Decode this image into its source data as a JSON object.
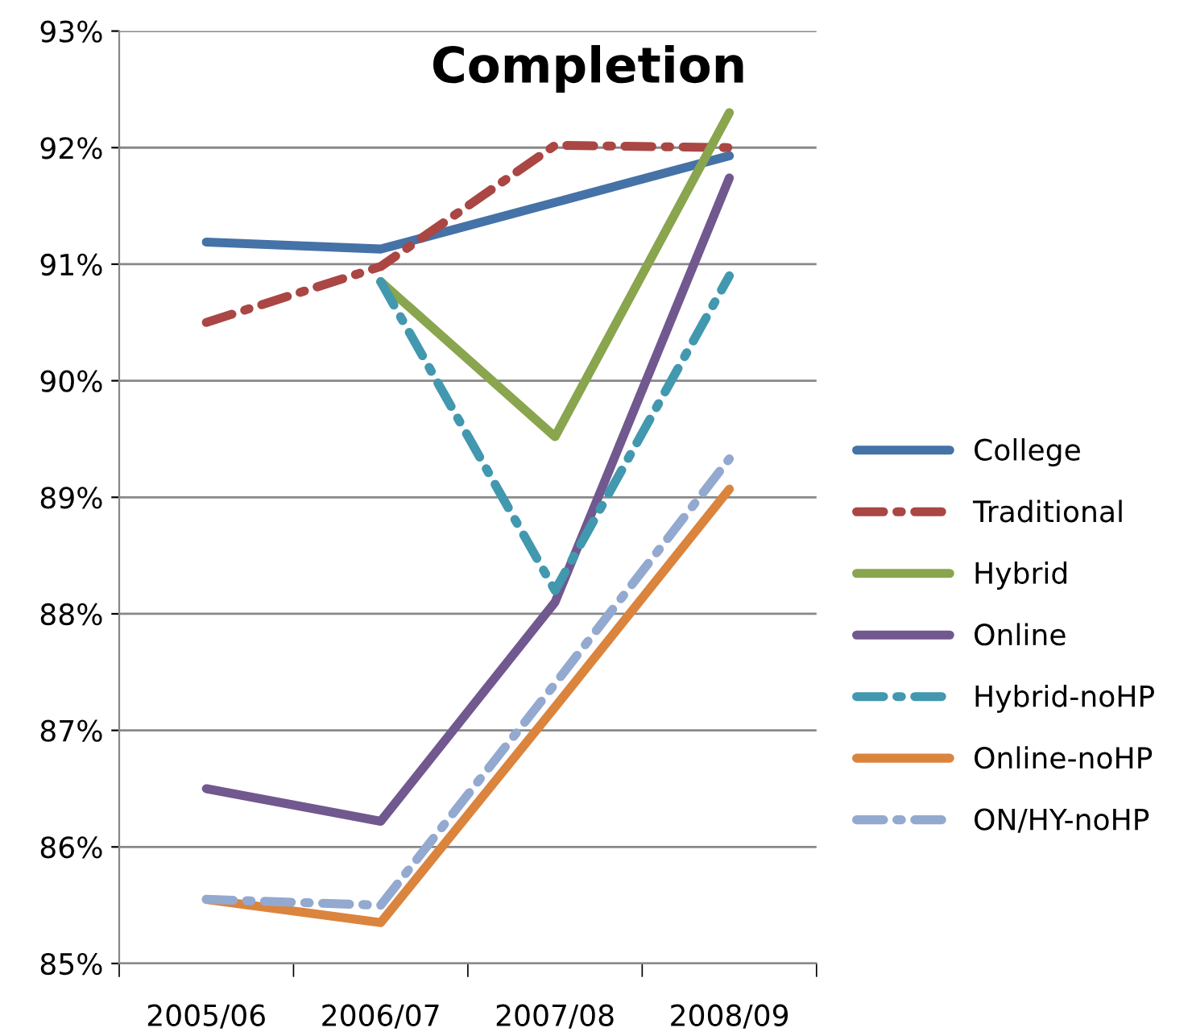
{
  "chart_data": {
    "type": "line",
    "title": "Completion",
    "categories": [
      "2005/06",
      "2006/07",
      "2007/08",
      "2008/09"
    ],
    "series": [
      {
        "name": "College",
        "color": "#4572a7",
        "values": [
          91.19,
          91.13,
          91.53,
          91.93
        ]
      },
      {
        "name": "Traditional",
        "color": "#aa4643",
        "values": [
          90.5,
          90.98,
          92.02,
          92.0
        ],
        "line_style": "dashed"
      },
      {
        "name": "Hybrid",
        "color": "#89a54e",
        "values": [
          null,
          90.85,
          89.52,
          92.3
        ]
      },
      {
        "name": "Online",
        "color": "#71588f",
        "values": [
          86.5,
          86.22,
          88.1,
          91.74
        ]
      },
      {
        "name": "Hybrid-noHP",
        "color": "#4198af",
        "values": [
          null,
          90.85,
          88.2,
          90.9
        ],
        "line_style": "dashed"
      },
      {
        "name": "Online-noHP",
        "color": "#db843d",
        "values": [
          85.55,
          85.35,
          87.2,
          89.07
        ]
      },
      {
        "name": "ON/HY-noHP",
        "color": "#93a9cf",
        "values": [
          85.55,
          85.5,
          87.4,
          89.33
        ],
        "line_style": "dashed"
      }
    ],
    "ylim": [
      85,
      93
    ],
    "yticks": [
      {
        "value": 85,
        "label": "85%"
      },
      {
        "value": 86,
        "label": "86%"
      },
      {
        "value": 87,
        "label": "87%"
      },
      {
        "value": 88,
        "label": "88%"
      },
      {
        "value": 89,
        "label": "89%"
      },
      {
        "value": 90,
        "label": "90%"
      },
      {
        "value": 91,
        "label": "91%"
      },
      {
        "value": 92,
        "label": "92%"
      },
      {
        "value": 93,
        "label": "93%"
      }
    ],
    "grid": "y",
    "legend": "right",
    "marker": "none",
    "line_style": "solid"
  }
}
